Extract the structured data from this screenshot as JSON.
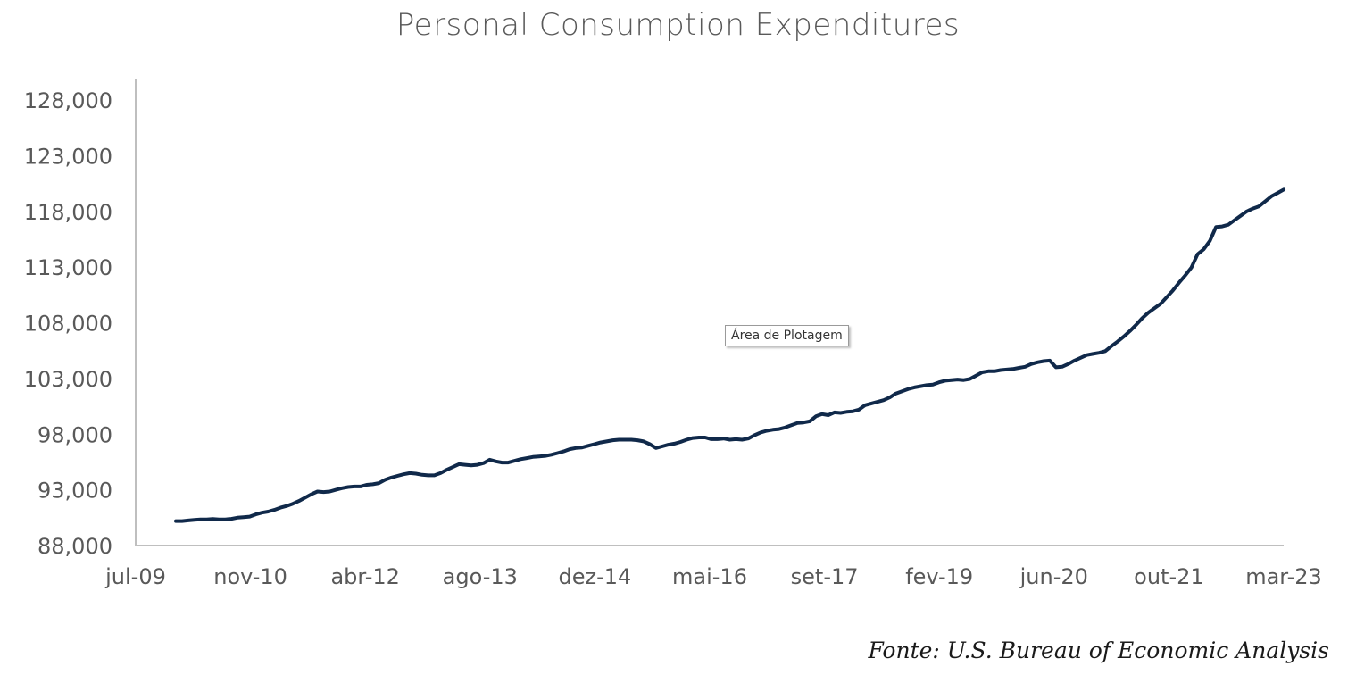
{
  "chart_data": {
    "type": "line",
    "title": "Personal Consumption Expenditures",
    "xlabel": "",
    "ylabel": "",
    "x_tick_labels": [
      "jul-09",
      "nov-10",
      "abr-12",
      "ago-13",
      "dez-14",
      "mai-16",
      "set-17",
      "fev-19",
      "jun-20",
      "out-21",
      "mar-23"
    ],
    "y_tick_labels": [
      "88,000",
      "93,000",
      "98,000",
      "103,000",
      "108,000",
      "113,000",
      "118,000",
      "123,000",
      "128,000"
    ],
    "ylim": [
      88000,
      128000
    ],
    "x_range_months": [
      0,
      164
    ],
    "series": [
      {
        "name": "Personal Consumption Expenditures",
        "color": "#10294a",
        "points": [
          [
            7,
            90200
          ],
          [
            8,
            90200
          ],
          [
            9,
            90250
          ],
          [
            10,
            90300
          ],
          [
            11,
            90350
          ],
          [
            12,
            90350
          ],
          [
            13,
            90380
          ],
          [
            14,
            90350
          ],
          [
            15,
            90350
          ],
          [
            16,
            90400
          ],
          [
            17,
            90500
          ],
          [
            18,
            90550
          ],
          [
            19,
            90600
          ],
          [
            20,
            90800
          ],
          [
            21,
            90950
          ],
          [
            22,
            91050
          ],
          [
            23,
            91200
          ],
          [
            24,
            91400
          ],
          [
            25,
            91550
          ],
          [
            26,
            91750
          ],
          [
            27,
            92000
          ],
          [
            28,
            92300
          ],
          [
            29,
            92600
          ],
          [
            30,
            92850
          ],
          [
            31,
            92800
          ],
          [
            32,
            92850
          ],
          [
            33,
            93000
          ],
          [
            34,
            93150
          ],
          [
            35,
            93250
          ],
          [
            36,
            93300
          ],
          [
            37,
            93300
          ],
          [
            38,
            93450
          ],
          [
            39,
            93500
          ],
          [
            40,
            93600
          ],
          [
            41,
            93900
          ],
          [
            42,
            94100
          ],
          [
            43,
            94250
          ],
          [
            44,
            94400
          ],
          [
            45,
            94500
          ],
          [
            46,
            94450
          ],
          [
            47,
            94350
          ],
          [
            48,
            94300
          ],
          [
            49,
            94300
          ],
          [
            50,
            94500
          ],
          [
            51,
            94800
          ],
          [
            52,
            95050
          ],
          [
            53,
            95300
          ],
          [
            54,
            95250
          ],
          [
            55,
            95200
          ],
          [
            56,
            95250
          ],
          [
            57,
            95400
          ],
          [
            58,
            95700
          ],
          [
            59,
            95550
          ],
          [
            60,
            95450
          ],
          [
            61,
            95450
          ],
          [
            62,
            95600
          ],
          [
            63,
            95750
          ],
          [
            64,
            95850
          ],
          [
            65,
            95950
          ],
          [
            66,
            96000
          ],
          [
            67,
            96050
          ],
          [
            68,
            96150
          ],
          [
            69,
            96300
          ],
          [
            70,
            96450
          ],
          [
            71,
            96650
          ],
          [
            72,
            96750
          ],
          [
            73,
            96800
          ],
          [
            74,
            96950
          ],
          [
            75,
            97100
          ],
          [
            76,
            97250
          ],
          [
            77,
            97350
          ],
          [
            78,
            97450
          ],
          [
            79,
            97500
          ],
          [
            80,
            97500
          ],
          [
            81,
            97500
          ],
          [
            82,
            97450
          ],
          [
            83,
            97350
          ],
          [
            84,
            97100
          ],
          [
            85,
            96750
          ],
          [
            86,
            96900
          ],
          [
            87,
            97050
          ],
          [
            88,
            97150
          ],
          [
            89,
            97300
          ],
          [
            90,
            97500
          ],
          [
            91,
            97650
          ],
          [
            92,
            97700
          ],
          [
            93,
            97700
          ],
          [
            94,
            97550
          ],
          [
            95,
            97550
          ],
          [
            96,
            97600
          ],
          [
            97,
            97500
          ],
          [
            98,
            97550
          ],
          [
            99,
            97500
          ],
          [
            100,
            97600
          ],
          [
            101,
            97900
          ],
          [
            102,
            98150
          ],
          [
            103,
            98300
          ],
          [
            104,
            98400
          ],
          [
            105,
            98450
          ],
          [
            106,
            98600
          ],
          [
            107,
            98800
          ],
          [
            108,
            99000
          ],
          [
            109,
            99050
          ],
          [
            110,
            99150
          ],
          [
            111,
            99600
          ],
          [
            112,
            99800
          ],
          [
            113,
            99700
          ],
          [
            114,
            99950
          ],
          [
            115,
            99900
          ],
          [
            116,
            100000
          ],
          [
            117,
            100050
          ],
          [
            118,
            100200
          ],
          [
            119,
            100600
          ],
          [
            120,
            100750
          ],
          [
            121,
            100900
          ],
          [
            122,
            101050
          ],
          [
            123,
            101300
          ],
          [
            124,
            101650
          ],
          [
            125,
            101850
          ],
          [
            126,
            102050
          ],
          [
            127,
            102200
          ],
          [
            128,
            102300
          ],
          [
            129,
            102400
          ],
          [
            130,
            102450
          ],
          [
            131,
            102650
          ],
          [
            132,
            102800
          ],
          [
            133,
            102850
          ],
          [
            134,
            102900
          ],
          [
            135,
            102850
          ],
          [
            136,
            102950
          ],
          [
            137,
            103250
          ],
          [
            138,
            103550
          ],
          [
            139,
            103650
          ],
          [
            140,
            103650
          ],
          [
            141,
            103750
          ],
          [
            142,
            103800
          ],
          [
            143,
            103850
          ],
          [
            144,
            103950
          ],
          [
            145,
            104050
          ],
          [
            146,
            104300
          ],
          [
            147,
            104450
          ],
          [
            148,
            104550
          ],
          [
            149,
            104600
          ],
          [
            150,
            104000
          ],
          [
            151,
            104050
          ],
          [
            152,
            104300
          ],
          [
            153,
            104600
          ],
          [
            154,
            104850
          ],
          [
            155,
            105100
          ],
          [
            156,
            105200
          ],
          [
            157,
            105300
          ],
          [
            158,
            105450
          ],
          [
            159,
            105900
          ],
          [
            160,
            106300
          ],
          [
            161,
            106750
          ],
          [
            162,
            107250
          ],
          [
            163,
            107800
          ],
          [
            164,
            108400
          ],
          [
            165,
            108900
          ],
          [
            166,
            109300
          ],
          [
            167,
            109700
          ],
          [
            168,
            110300
          ],
          [
            169,
            110900
          ],
          [
            170,
            111600
          ],
          [
            171,
            112250
          ],
          [
            172,
            112950
          ],
          [
            173,
            114150
          ],
          [
            174,
            114600
          ],
          [
            175,
            115350
          ],
          [
            176,
            116600
          ],
          [
            177,
            116650
          ],
          [
            178,
            116800
          ],
          [
            179,
            117200
          ],
          [
            180,
            117600
          ],
          [
            181,
            118000
          ],
          [
            182,
            118250
          ],
          [
            183,
            118450
          ],
          [
            184,
            118900
          ],
          [
            185,
            119350
          ],
          [
            186,
            119650
          ],
          [
            187,
            119950
          ]
        ]
      }
    ]
  },
  "source_note": "Fonte: U.S. Bureau of Economic Analysis",
  "tooltip": "Área de Plotagem"
}
